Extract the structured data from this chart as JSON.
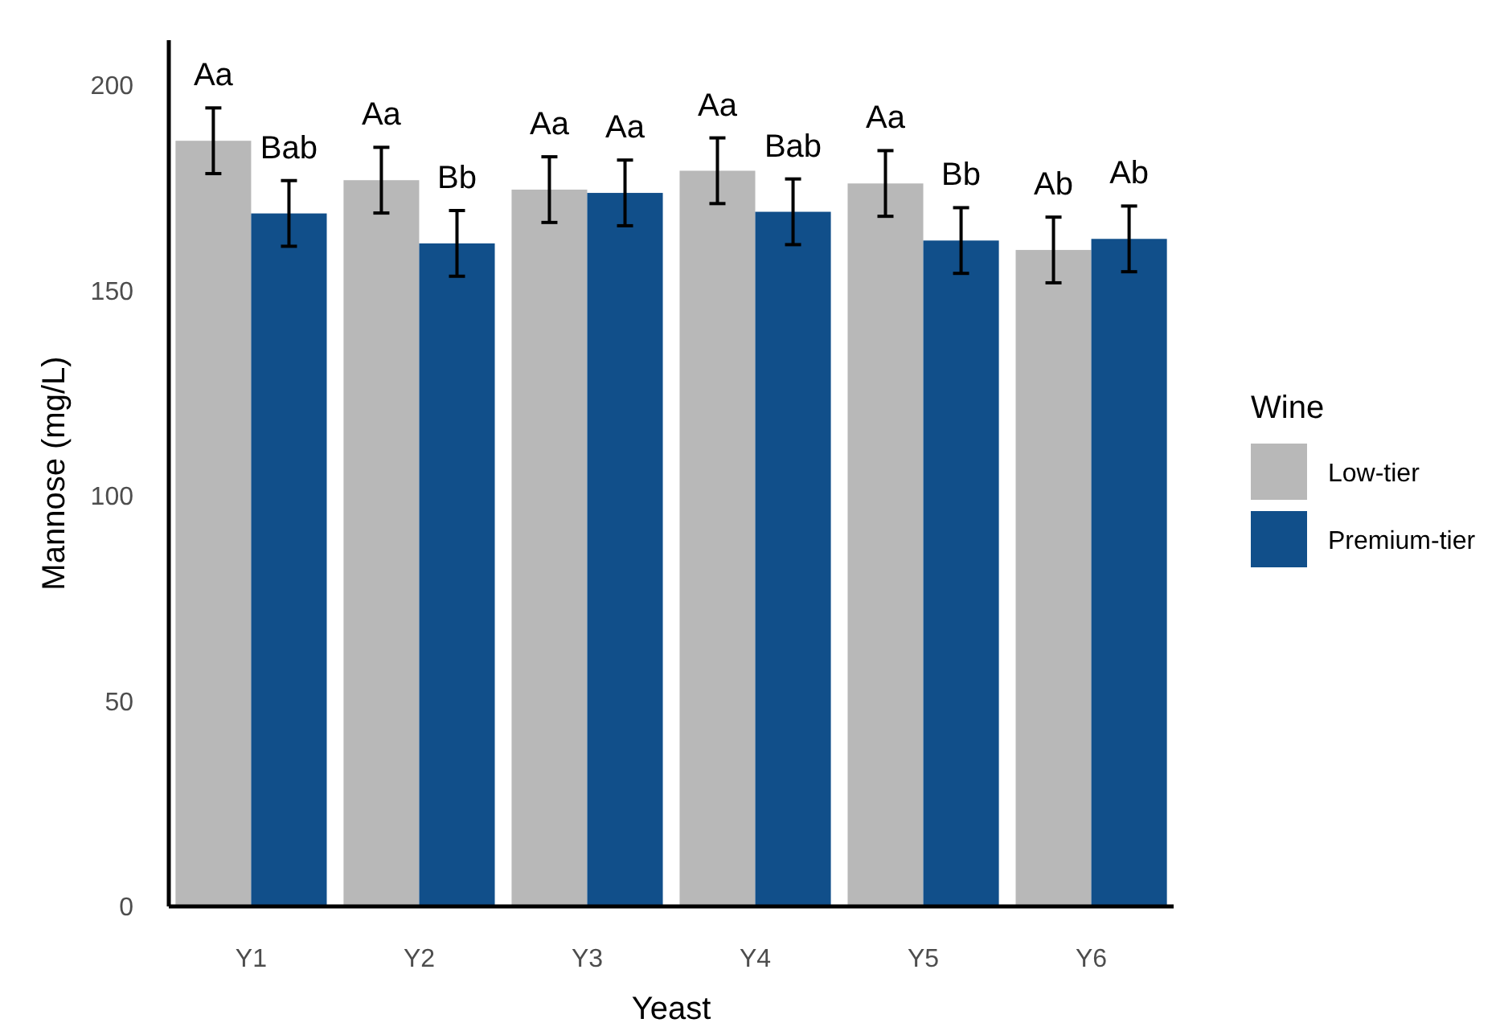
{
  "chart_data": {
    "type": "bar",
    "xlabel": "Yeast",
    "ylabel": "Mannose (mg/L)",
    "legend_title": "Wine",
    "categories": [
      "Y1",
      "Y2",
      "Y3",
      "Y4",
      "Y5",
      "Y6"
    ],
    "series": [
      {
        "name": "Low-tier",
        "color": "#b8b8b8",
        "values": [
          186.5,
          176.9,
          174.6,
          179.2,
          176.1,
          159.9
        ],
        "errors": [
          8,
          8,
          8,
          8,
          8,
          8
        ],
        "value_labels": [
          "Aa",
          "Aa",
          "Aa",
          "Aa",
          "Aa",
          "Ab"
        ]
      },
      {
        "name": "Premium-tier",
        "color": "#114f8a",
        "values": [
          168.8,
          161.5,
          173.8,
          169.2,
          162.2,
          162.6
        ],
        "errors": [
          8,
          8,
          8,
          8,
          8,
          8
        ],
        "value_labels": [
          "Bab",
          "Bb",
          "Aa",
          "Bab",
          "Bb",
          "Ab"
        ]
      }
    ],
    "ylim": [
      0,
      211
    ],
    "yticks": [
      0,
      50,
      100,
      150,
      200
    ],
    "grid": false,
    "legend": "right"
  }
}
